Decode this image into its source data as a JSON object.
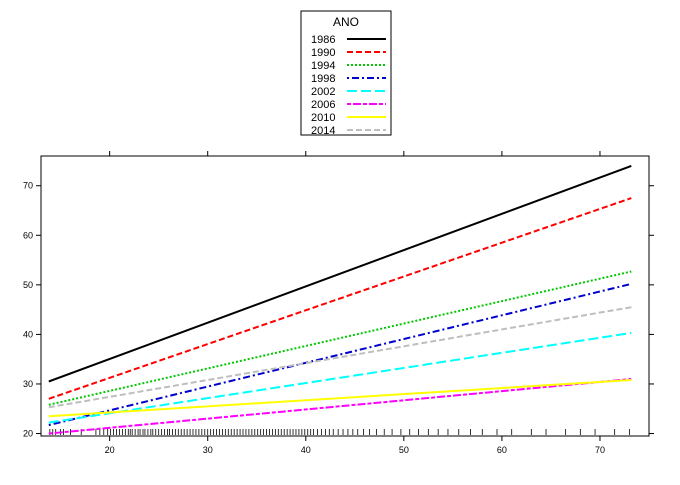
{
  "chart_data": {
    "type": "line",
    "title": "",
    "xlabel": "",
    "ylabel": "",
    "xlim": [
      13,
      75
    ],
    "ylim": [
      19.5,
      76
    ],
    "x_ticks": [
      20,
      30,
      40,
      50,
      60,
      70
    ],
    "y_ticks": [
      20,
      30,
      40,
      50,
      60,
      70
    ],
    "grid": false,
    "legend": {
      "title": "ANO",
      "placement": "top"
    },
    "series": [
      {
        "name": "1986",
        "x": [
          13.8,
          73.2
        ],
        "y": [
          30.5,
          74.0
        ],
        "color": "#000000",
        "dash": "solid"
      },
      {
        "name": "1990",
        "x": [
          13.8,
          73.2
        ],
        "y": [
          27.0,
          67.5
        ],
        "color": "#ff0000",
        "dash": "dashed"
      },
      {
        "name": "1994",
        "x": [
          13.8,
          73.2
        ],
        "y": [
          25.8,
          52.7
        ],
        "color": "#00c800",
        "dash": "dotted"
      },
      {
        "name": "1998",
        "x": [
          13.8,
          73.2
        ],
        "y": [
          21.7,
          50.2
        ],
        "color": "#0000cc",
        "dash": "dotdash"
      },
      {
        "name": "2002",
        "x": [
          13.8,
          73.2
        ],
        "y": [
          22.2,
          40.3
        ],
        "color": "#00ffff",
        "dash": "longdash"
      },
      {
        "name": "2006",
        "x": [
          13.8,
          73.2
        ],
        "y": [
          20.0,
          31.0
        ],
        "color": "#ff00ff",
        "dash": "twodash"
      },
      {
        "name": "2010",
        "x": [
          13.8,
          73.2
        ],
        "y": [
          23.5,
          30.8
        ],
        "color": "#ffff00",
        "dash": "solid"
      },
      {
        "name": "2014",
        "x": [
          13.8,
          73.2
        ],
        "y": [
          25.3,
          45.5
        ],
        "color": "#bebebe",
        "dash": "dashed"
      }
    ],
    "rug": [
      13.9,
      14.2,
      14.5,
      15.0,
      15.3,
      16.0,
      17.1,
      18.6,
      19.0,
      19.4,
      19.8,
      20.1,
      20.4,
      20.7,
      21.0,
      21.3,
      21.6,
      21.9,
      22.1,
      22.3,
      22.6,
      22.9,
      23.1,
      23.4,
      23.6,
      23.9,
      24.2,
      24.4,
      24.7,
      25.0,
      25.3,
      25.6,
      25.9,
      26.1,
      26.4,
      26.7,
      27.0,
      27.3,
      27.6,
      27.9,
      28.2,
      28.5,
      28.8,
      29.1,
      29.4,
      29.7,
      30.0,
      30.3,
      30.6,
      30.9,
      31.2,
      31.5,
      31.8,
      32.1,
      32.4,
      32.7,
      33.0,
      33.3,
      33.6,
      33.9,
      34.2,
      34.5,
      34.8,
      35.1,
      35.4,
      35.7,
      36.0,
      36.3,
      36.6,
      36.9,
      37.2,
      37.5,
      37.8,
      38.1,
      38.4,
      38.7,
      39.0,
      39.3,
      39.6,
      39.9,
      40.2,
      40.5,
      40.8,
      41.2,
      41.6,
      42.0,
      42.4,
      42.8,
      43.3,
      43.8,
      44.3,
      44.8,
      45.3,
      45.9,
      46.5,
      47.2,
      48.0,
      48.8,
      49.7,
      50.6,
      51.5,
      52.5,
      53.5,
      54.5,
      55.6,
      56.8,
      58.0,
      59.5,
      61.0,
      63.0,
      64.5,
      66.5,
      68.0,
      69.5,
      71.5,
      73.0
    ]
  }
}
